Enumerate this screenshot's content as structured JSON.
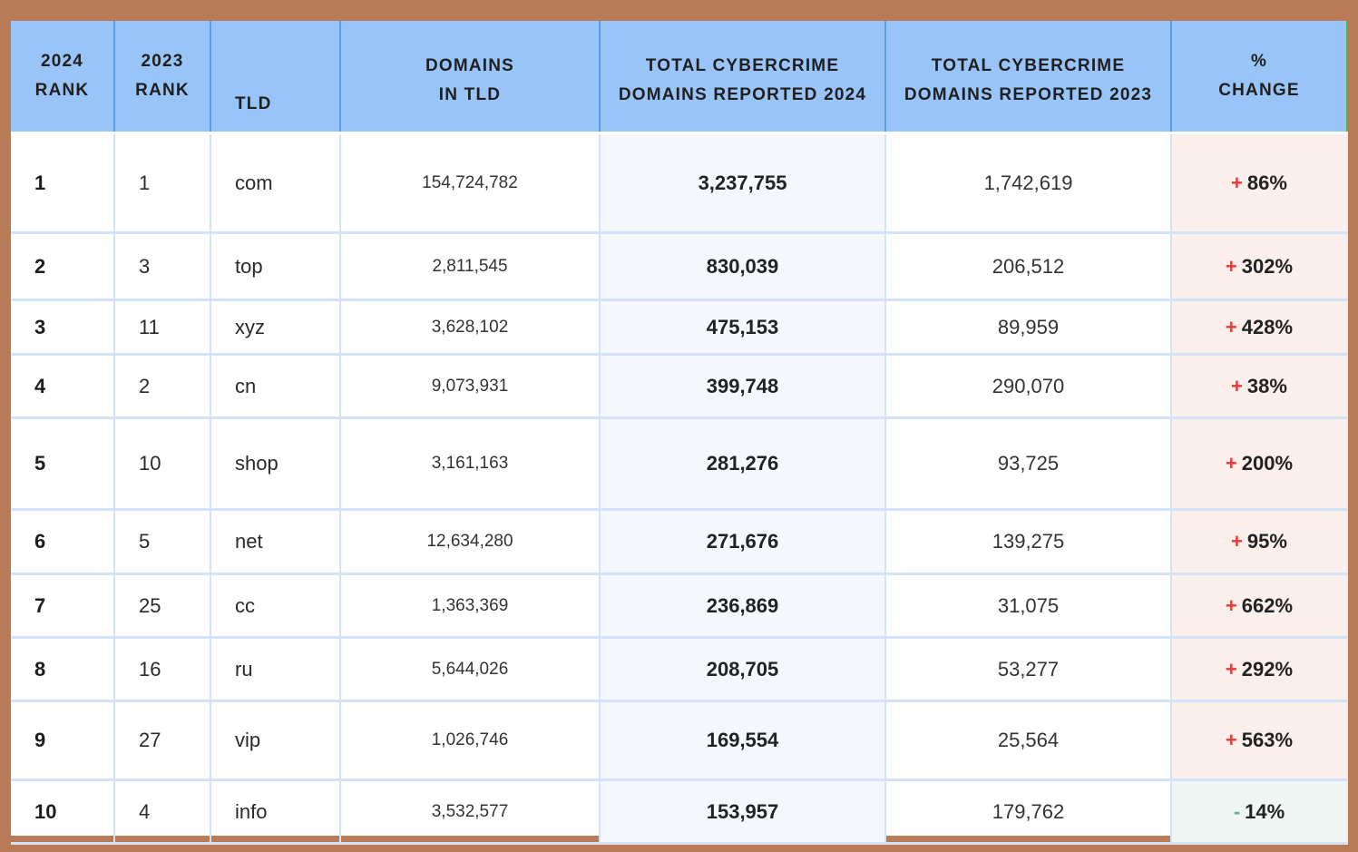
{
  "colors": {
    "header_bg": "#99c4f8",
    "increase": "#e23b3b",
    "decrease": "#57b884",
    "increase_cell_bg": "#fbefec",
    "decrease_cell_bg": "#eef5f2",
    "frame": "#b97a57"
  },
  "chart_data": {
    "type": "table",
    "columns": [
      [
        "2024",
        "RANK"
      ],
      [
        "2023",
        "RANK"
      ],
      [
        "TLD"
      ],
      [
        "DOMAINS",
        "IN TLD"
      ],
      [
        "TOTAL CYBERCRIME",
        "DOMAINS REPORTED 2024"
      ],
      [
        "TOTAL CYBERCRIME",
        "DOMAINS REPORTED 2023"
      ],
      [
        "%",
        "CHANGE"
      ]
    ],
    "rows": [
      {
        "rank_2024": "1",
        "rank_2023": "1",
        "tld": "com",
        "domains": "154,724,782",
        "reported_2024": "3,237,755",
        "reported_2023": "1,742,619",
        "sign": "+",
        "change": "86%"
      },
      {
        "rank_2024": "2",
        "rank_2023": "3",
        "tld": "top",
        "domains": "2,811,545",
        "reported_2024": "830,039",
        "reported_2023": "206,512",
        "sign": "+",
        "change": "302%"
      },
      {
        "rank_2024": "3",
        "rank_2023": "11",
        "tld": "xyz",
        "domains": "3,628,102",
        "reported_2024": "475,153",
        "reported_2023": "89,959",
        "sign": "+",
        "change": "428%"
      },
      {
        "rank_2024": "4",
        "rank_2023": "2",
        "tld": "cn",
        "domains": "9,073,931",
        "reported_2024": "399,748",
        "reported_2023": "290,070",
        "sign": "+",
        "change": "38%"
      },
      {
        "rank_2024": "5",
        "rank_2023": "10",
        "tld": "shop",
        "domains": "3,161,163",
        "reported_2024": "281,276",
        "reported_2023": "93,725",
        "sign": "+",
        "change": "200%"
      },
      {
        "rank_2024": "6",
        "rank_2023": "5",
        "tld": "net",
        "domains": "12,634,280",
        "reported_2024": "271,676",
        "reported_2023": "139,275",
        "sign": "+",
        "change": "95%"
      },
      {
        "rank_2024": "7",
        "rank_2023": "25",
        "tld": "cc",
        "domains": "1,363,369",
        "reported_2024": "236,869",
        "reported_2023": "31,075",
        "sign": "+",
        "change": "662%"
      },
      {
        "rank_2024": "8",
        "rank_2023": "16",
        "tld": "ru",
        "domains": "5,644,026",
        "reported_2024": "208,705",
        "reported_2023": "53,277",
        "sign": "+",
        "change": "292%"
      },
      {
        "rank_2024": "9",
        "rank_2023": "27",
        "tld": "vip",
        "domains": "1,026,746",
        "reported_2024": "169,554",
        "reported_2023": "25,564",
        "sign": "+",
        "change": "563%"
      },
      {
        "rank_2024": "10",
        "rank_2023": "4",
        "tld": "info",
        "domains": "3,532,577",
        "reported_2024": "153,957",
        "reported_2023": "179,762",
        "sign": "-",
        "change": "14%"
      }
    ]
  }
}
